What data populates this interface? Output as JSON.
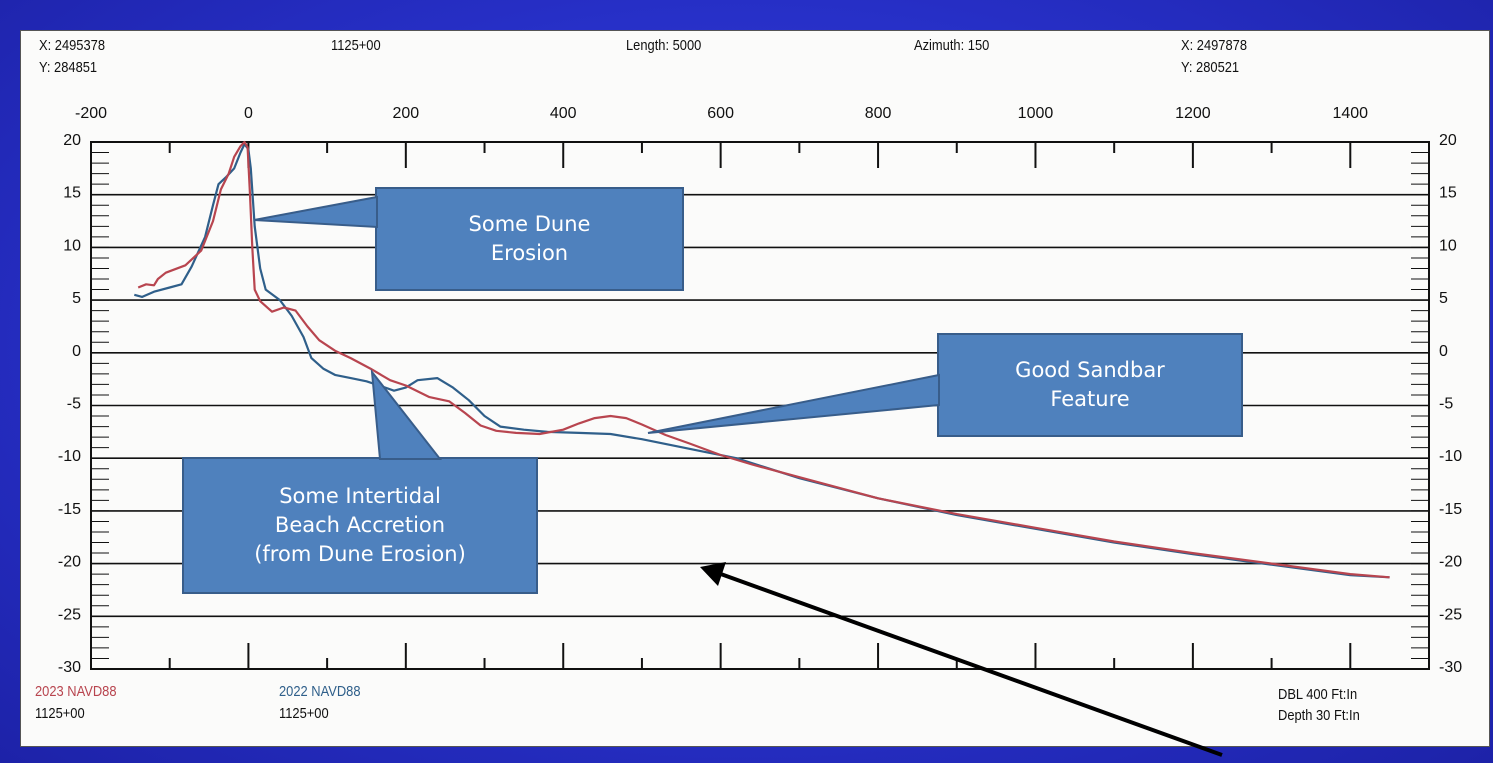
{
  "header": {
    "start_x": "X: 2495378",
    "start_y": "Y: 284851",
    "station": "1125+00",
    "length": "Length: 5000",
    "azimuth": "Azimuth: 150",
    "end_x": "X: 2497878",
    "end_y": "Y: 280521"
  },
  "plot_label": "1125+00",
  "legend": {
    "series1_name": "2023 NAVD88",
    "series1_station": "1125+00",
    "series2_name": "2022 NAVD88",
    "series2_station": "1125+00",
    "scale_horizontal": "DBL 400 Ft:In",
    "scale_vertical": "Depth 30 Ft:In"
  },
  "callouts": {
    "dune": [
      "Some Dune",
      "Erosion"
    ],
    "sandbar": [
      "Good Sandbar",
      "Feature"
    ],
    "intertidal": [
      "Some Intertidal",
      "Beach Accretion",
      "(from Dune Erosion)"
    ]
  },
  "colors": {
    "background": "#2730c8",
    "series_2023": "#b8454f",
    "series_2022": "#2f5f8a",
    "callout_fill": "#4f81bd"
  },
  "chart_data": {
    "type": "line",
    "xlim": [
      -200,
      1500
    ],
    "ylim": [
      -30,
      20
    ],
    "x_ticks": [
      -200,
      0,
      200,
      400,
      600,
      800,
      1000,
      1200,
      1400
    ],
    "y_ticks": [
      20,
      15,
      10,
      5,
      0,
      -5,
      -10,
      -15,
      -20,
      -25,
      -30
    ],
    "grid": "horizontal",
    "series": [
      {
        "name": "2023 NAVD88",
        "color": "#b8454f",
        "points": [
          [
            -140,
            6.2
          ],
          [
            -130,
            6.5
          ],
          [
            -120,
            6.4
          ],
          [
            -115,
            7.0
          ],
          [
            -105,
            7.6
          ],
          [
            -80,
            8.3
          ],
          [
            -60,
            9.7
          ],
          [
            -45,
            12.5
          ],
          [
            -35,
            15.5
          ],
          [
            -25,
            17.0
          ],
          [
            -18,
            18.6
          ],
          [
            -10,
            19.6
          ],
          [
            -5,
            20.0
          ],
          [
            -1,
            19.5
          ],
          [
            2,
            15.0
          ],
          [
            5,
            10.0
          ],
          [
            8,
            6.0
          ],
          [
            15,
            4.9
          ],
          [
            30,
            3.9
          ],
          [
            45,
            4.3
          ],
          [
            60,
            4.0
          ],
          [
            75,
            2.5
          ],
          [
            90,
            1.2
          ],
          [
            110,
            0.2
          ],
          [
            130,
            -0.5
          ],
          [
            155,
            -1.5
          ],
          [
            180,
            -2.6
          ],
          [
            200,
            -3.1
          ],
          [
            230,
            -4.2
          ],
          [
            255,
            -4.6
          ],
          [
            275,
            -5.7
          ],
          [
            295,
            -6.9
          ],
          [
            315,
            -7.4
          ],
          [
            340,
            -7.6
          ],
          [
            370,
            -7.7
          ],
          [
            400,
            -7.3
          ],
          [
            420,
            -6.7
          ],
          [
            440,
            -6.2
          ],
          [
            460,
            -6.0
          ],
          [
            480,
            -6.2
          ],
          [
            500,
            -6.8
          ],
          [
            530,
            -7.8
          ],
          [
            560,
            -8.6
          ],
          [
            600,
            -9.7
          ],
          [
            640,
            -10.6
          ],
          [
            700,
            -11.8
          ],
          [
            800,
            -13.8
          ],
          [
            900,
            -15.3
          ],
          [
            1000,
            -16.6
          ],
          [
            1100,
            -17.9
          ],
          [
            1200,
            -19.0
          ],
          [
            1300,
            -20.0
          ],
          [
            1400,
            -21.0
          ],
          [
            1450,
            -21.3
          ]
        ]
      },
      {
        "name": "2022 NAVD88",
        "color": "#2f5f8a",
        "points": [
          [
            -145,
            5.5
          ],
          [
            -135,
            5.3
          ],
          [
            -120,
            5.8
          ],
          [
            -100,
            6.2
          ],
          [
            -85,
            6.5
          ],
          [
            -72,
            8.2
          ],
          [
            -55,
            11.0
          ],
          [
            -45,
            14.0
          ],
          [
            -38,
            16.0
          ],
          [
            -28,
            16.7
          ],
          [
            -18,
            17.5
          ],
          [
            -10,
            19.0
          ],
          [
            -5,
            19.8
          ],
          [
            0,
            19.3
          ],
          [
            3,
            17.5
          ],
          [
            8,
            12.0
          ],
          [
            15,
            8.0
          ],
          [
            22,
            6.0
          ],
          [
            40,
            5.0
          ],
          [
            55,
            3.5
          ],
          [
            70,
            1.5
          ],
          [
            80,
            -0.5
          ],
          [
            95,
            -1.5
          ],
          [
            110,
            -2.1
          ],
          [
            130,
            -2.4
          ],
          [
            150,
            -2.7
          ],
          [
            170,
            -3.2
          ],
          [
            185,
            -3.6
          ],
          [
            200,
            -3.3
          ],
          [
            215,
            -2.6
          ],
          [
            240,
            -2.4
          ],
          [
            260,
            -3.3
          ],
          [
            280,
            -4.5
          ],
          [
            300,
            -6.0
          ],
          [
            320,
            -7.0
          ],
          [
            350,
            -7.3
          ],
          [
            380,
            -7.5
          ],
          [
            420,
            -7.6
          ],
          [
            460,
            -7.7
          ],
          [
            500,
            -8.2
          ],
          [
            540,
            -8.8
          ],
          [
            580,
            -9.4
          ],
          [
            620,
            -10.0
          ],
          [
            700,
            -11.9
          ],
          [
            800,
            -13.8
          ],
          [
            900,
            -15.4
          ],
          [
            1000,
            -16.7
          ],
          [
            1100,
            -18.0
          ],
          [
            1200,
            -19.1
          ],
          [
            1300,
            -20.1
          ],
          [
            1400,
            -21.1
          ],
          [
            1450,
            -21.3
          ]
        ]
      }
    ]
  }
}
